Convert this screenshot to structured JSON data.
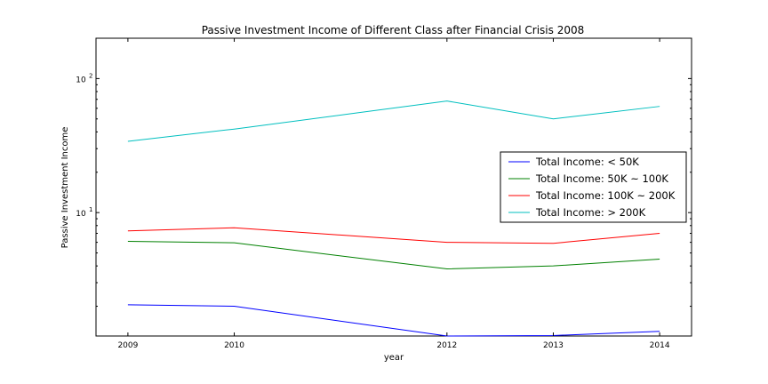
{
  "chart_data": {
    "type": "line",
    "title": "Passive Investment Income of Different Class after Financial Crisis 2008",
    "xlabel": "year",
    "ylabel": "Passive Investment Income",
    "x": [
      2009,
      2010,
      2012,
      2013,
      2014
    ],
    "xlim": [
      2008.7,
      2014.3
    ],
    "y_scale": "log",
    "ylim": [
      1.2,
      200
    ],
    "y_ticks": [
      {
        "value": 10,
        "base": "10",
        "exp": "1"
      },
      {
        "value": 100,
        "base": "10",
        "exp": "2"
      }
    ],
    "grid": false,
    "legend_position": "center-right",
    "series": [
      {
        "name": "Total Income: < 50K",
        "color": "#0000ff",
        "values": [
          2.05,
          2.0,
          1.2,
          1.21,
          1.3
        ]
      },
      {
        "name": "Total Income: 50K ~ 100K",
        "color": "#008000",
        "values": [
          6.1,
          5.95,
          3.8,
          4.0,
          4.5
        ]
      },
      {
        "name": "Total Income: 100K ~ 200K",
        "color": "#ff0000",
        "values": [
          7.3,
          7.7,
          6.0,
          5.9,
          7.0
        ]
      },
      {
        "name": "Total Income: > 200K",
        "color": "#00bfbf",
        "values": [
          34,
          42,
          68,
          50,
          62
        ]
      }
    ]
  }
}
